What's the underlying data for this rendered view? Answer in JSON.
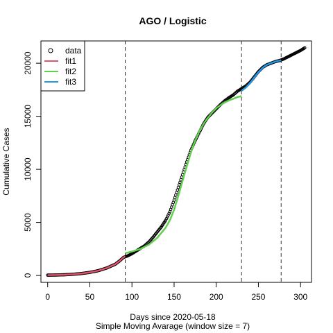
{
  "chart_data": {
    "type": "scatter",
    "title": "AGO / Logistic",
    "xlabel": "Days since 2020-05-18",
    "xlabel2": "Simple Moving Avarage (window size = 7)",
    "ylabel": "Cumulative Cases",
    "xlim": [
      -8,
      313
    ],
    "ylim": [
      -650,
      22100
    ],
    "xticks": [
      0,
      50,
      100,
      150,
      200,
      250,
      300
    ],
    "yticks": [
      0,
      5000,
      10000,
      15000,
      20000
    ],
    "vlines": [
      92,
      230,
      277
    ],
    "legend_position": "top-left",
    "grid": false,
    "legend": [
      {
        "label": "data",
        "kind": "point"
      },
      {
        "label": "fit1",
        "kind": "line",
        "color": "#DF536B"
      },
      {
        "label": "fit2",
        "kind": "line",
        "color": "#61D04F"
      },
      {
        "label": "fit3",
        "kind": "line",
        "color": "#2297E6"
      }
    ],
    "data_curve": [
      [
        0,
        30
      ],
      [
        10,
        40
      ],
      [
        20,
        65
      ],
      [
        30,
        110
      ],
      [
        40,
        180
      ],
      [
        50,
        290
      ],
      [
        60,
        450
      ],
      [
        70,
        700
      ],
      [
        80,
        1050
      ],
      [
        85,
        1350
      ],
      [
        90,
        1700
      ],
      [
        95,
        1850
      ],
      [
        100,
        2050
      ],
      [
        105,
        2300
      ],
      [
        110,
        2550
      ],
      [
        115,
        2800
      ],
      [
        120,
        3150
      ],
      [
        125,
        3600
      ],
      [
        130,
        4100
      ],
      [
        135,
        4600
      ],
      [
        140,
        5200
      ],
      [
        145,
        6000
      ],
      [
        150,
        7100
      ],
      [
        155,
        8300
      ],
      [
        160,
        9500
      ],
      [
        165,
        10700
      ],
      [
        170,
        11800
      ],
      [
        175,
        12700
      ],
      [
        180,
        13500
      ],
      [
        185,
        14300
      ],
      [
        190,
        14900
      ],
      [
        195,
        15300
      ],
      [
        200,
        15700
      ],
      [
        205,
        16100
      ],
      [
        210,
        16450
      ],
      [
        215,
        16750
      ],
      [
        220,
        17000
      ],
      [
        225,
        17350
      ],
      [
        230,
        17600
      ],
      [
        235,
        17850
      ],
      [
        240,
        18200
      ],
      [
        245,
        18700
      ],
      [
        250,
        19200
      ],
      [
        255,
        19600
      ],
      [
        260,
        19850
      ],
      [
        265,
        20000
      ],
      [
        270,
        20150
      ],
      [
        275,
        20250
      ],
      [
        280,
        20400
      ],
      [
        285,
        20600
      ],
      [
        290,
        20800
      ],
      [
        295,
        21000
      ],
      [
        300,
        21200
      ],
      [
        305,
        21450
      ]
    ],
    "series": [
      {
        "name": "fit1",
        "color": "#DF536B",
        "points": [
          [
            0,
            30
          ],
          [
            10,
            40
          ],
          [
            20,
            65
          ],
          [
            30,
            110
          ],
          [
            40,
            180
          ],
          [
            50,
            290
          ],
          [
            60,
            450
          ],
          [
            70,
            700
          ],
          [
            80,
            1050
          ],
          [
            85,
            1350
          ],
          [
            90,
            1700
          ],
          [
            92,
            1800
          ]
        ]
      },
      {
        "name": "fit2",
        "color": "#61D04F",
        "points": [
          [
            92,
            2100
          ],
          [
            100,
            2250
          ],
          [
            110,
            2500
          ],
          [
            120,
            2900
          ],
          [
            130,
            3550
          ],
          [
            140,
            4500
          ],
          [
            145,
            5200
          ],
          [
            150,
            6200
          ],
          [
            155,
            7500
          ],
          [
            160,
            8900
          ],
          [
            165,
            10300
          ],
          [
            170,
            11600
          ],
          [
            175,
            12700
          ],
          [
            180,
            13600
          ],
          [
            185,
            14300
          ],
          [
            190,
            14850
          ],
          [
            195,
            15350
          ],
          [
            200,
            15750
          ],
          [
            205,
            16050
          ],
          [
            210,
            16300
          ],
          [
            215,
            16500
          ],
          [
            220,
            16650
          ],
          [
            225,
            16800
          ],
          [
            230,
            16900
          ]
        ]
      },
      {
        "name": "fit3",
        "color": "#2297E6",
        "points": [
          [
            230,
            17400
          ],
          [
            235,
            17700
          ],
          [
            240,
            18100
          ],
          [
            245,
            18650
          ],
          [
            250,
            19150
          ],
          [
            255,
            19550
          ],
          [
            260,
            19850
          ],
          [
            265,
            20000
          ],
          [
            270,
            20150
          ],
          [
            275,
            20250
          ],
          [
            277,
            20280
          ]
        ]
      }
    ]
  }
}
